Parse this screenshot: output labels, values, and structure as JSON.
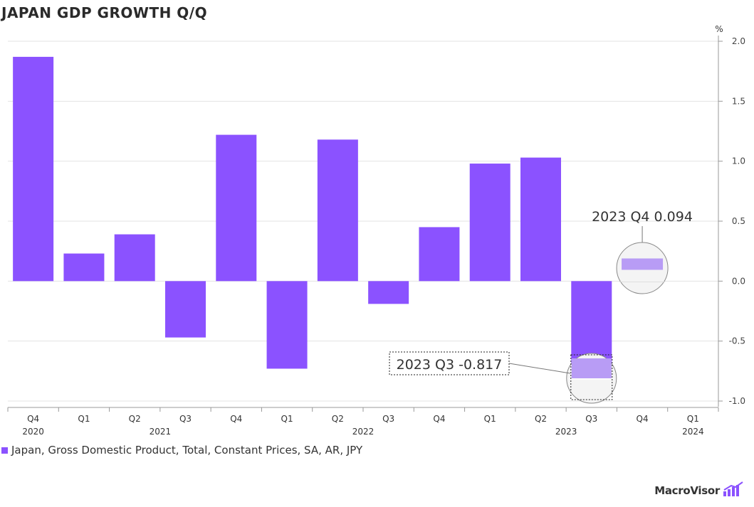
{
  "chart_data": {
    "type": "bar",
    "title": "JAPAN GDP GROWTH Q/Q",
    "unit_label": "%",
    "categories": [
      "Q4",
      "Q1",
      "Q2",
      "Q3",
      "Q4",
      "Q1",
      "Q2",
      "Q3",
      "Q4",
      "Q1",
      "Q2",
      "Q3",
      "Q4",
      "Q1"
    ],
    "years": [
      {
        "label": "2020",
        "start": 0,
        "end": 0
      },
      {
        "label": "2021",
        "start": 1,
        "end": 4
      },
      {
        "label": "2022",
        "start": 5,
        "end": 8
      },
      {
        "label": "2023",
        "start": 9,
        "end": 12
      },
      {
        "label": "2024",
        "start": 13,
        "end": 13
      }
    ],
    "series": [
      {
        "name": "Japan, Gross Domestic Product, Total, Constant Prices, SA, AR, JPY",
        "color": "#8b52ff",
        "values": [
          1.87,
          0.23,
          0.39,
          -0.47,
          1.22,
          -0.73,
          1.18,
          -0.19,
          0.45,
          0.98,
          1.03,
          -0.817,
          0.094,
          null
        ]
      }
    ],
    "ylim": [
      -1.0,
      2.0
    ],
    "yticks": [
      2.0,
      1.5,
      1.0,
      0.5,
      0.0,
      -0.5,
      -1.0
    ],
    "ytick_labels": [
      "2.0",
      "1.5",
      "1.0",
      "0.5",
      "0.0",
      "-0.5",
      "-1.0"
    ],
    "annotations": [
      {
        "label": "2023 Q4 0.094",
        "index": 12,
        "value": 0.094
      },
      {
        "label": "2023 Q3 -0.817",
        "index": 11,
        "value": -0.817
      }
    ],
    "highlight_color": "#b89cf5",
    "grid": true
  },
  "legend": {
    "label": "Japan, Gross Domestic Product, Total, Constant Prices, SA, AR, JPY"
  },
  "brand": {
    "name": "MacroVisor"
  }
}
